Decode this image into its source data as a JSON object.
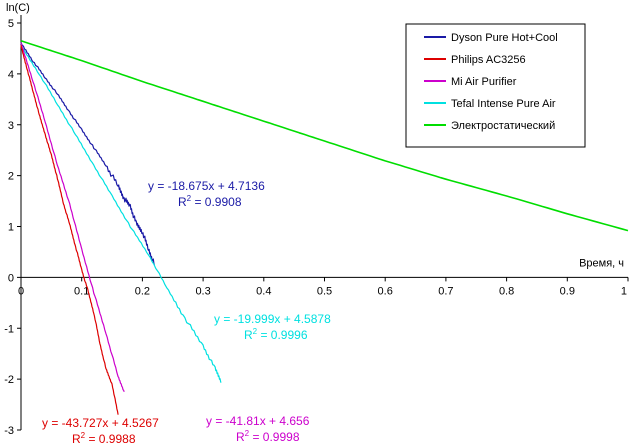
{
  "chart_data": {
    "type": "line",
    "title": "",
    "ylabel": "ln(C)",
    "xlabel": "Время, ч",
    "xlim": [
      0,
      1
    ],
    "ylim": [
      -3,
      5
    ],
    "xticks": [
      "0",
      "0.1",
      "0.2",
      "0.3",
      "0.4",
      "0.5",
      "0.6",
      "0.7",
      "0.8",
      "0.9",
      "1"
    ],
    "yticks": [
      "-3",
      "-2",
      "-1",
      "0",
      "1",
      "2",
      "3",
      "4",
      "5"
    ],
    "legend_position": "top-right",
    "series": [
      {
        "name": "Dyson Pure Hot+Cool",
        "color": "#1a1aa6",
        "x": [
          0,
          0.02,
          0.04,
          0.06,
          0.08,
          0.1,
          0.12,
          0.14,
          0.16,
          0.17,
          0.18,
          0.19,
          0.2,
          0.21,
          0.22
        ],
        "y": [
          4.6,
          4.25,
          3.92,
          3.6,
          3.25,
          2.9,
          2.55,
          2.2,
          1.8,
          1.55,
          1.4,
          1.05,
          0.9,
          0.55,
          0.25
        ]
      },
      {
        "name": "Philips AC3256",
        "color": "#dd0000",
        "x": [
          0,
          0.01,
          0.02,
          0.03,
          0.04,
          0.05,
          0.06,
          0.07,
          0.08,
          0.09,
          0.1,
          0.11,
          0.12,
          0.13,
          0.14,
          0.15,
          0.16
        ],
        "y": [
          4.55,
          4.1,
          3.65,
          3.2,
          2.8,
          2.4,
          1.95,
          1.45,
          1.05,
          0.6,
          0.15,
          -0.25,
          -0.7,
          -1.3,
          -1.8,
          -2.1,
          -2.7
        ]
      },
      {
        "name": "Mi Air Purifier",
        "color": "#cc00cc",
        "x": [
          0,
          0.02,
          0.04,
          0.06,
          0.08,
          0.1,
          0.12,
          0.14,
          0.16,
          0.17
        ],
        "y": [
          4.6,
          3.85,
          3.05,
          2.2,
          1.45,
          0.55,
          -0.3,
          -1.1,
          -1.95,
          -2.25
        ]
      },
      {
        "name": "Tefal Intense Pure Air",
        "color": "#00e0e0",
        "x": [
          0,
          0.03,
          0.06,
          0.09,
          0.12,
          0.15,
          0.18,
          0.21,
          0.24,
          0.27,
          0.3,
          0.32,
          0.33
        ],
        "y": [
          4.55,
          4.0,
          3.4,
          2.8,
          2.2,
          1.6,
          1.0,
          0.45,
          -0.2,
          -0.8,
          -1.35,
          -1.8,
          -2.05
        ]
      },
      {
        "name": "Электростатический",
        "color": "#00dd00",
        "x": [
          0,
          0.1,
          0.2,
          0.3,
          0.4,
          0.5,
          0.6,
          0.7,
          0.8,
          0.9,
          1.0
        ],
        "y": [
          4.65,
          4.26,
          3.85,
          3.46,
          3.07,
          2.68,
          2.29,
          1.93,
          1.6,
          1.25,
          0.92
        ]
      }
    ],
    "annotations": [
      {
        "series": "Dyson Pure Hot+Cool",
        "equation": "y = -18.675x + 4.7136",
        "r2_label": "R",
        "r2_sup": "2",
        "r2_value": " = 0.9908",
        "color": "#1a1aa6"
      },
      {
        "series": "Tefal Intense Pure Air",
        "equation": "y = -19.999x + 4.5878",
        "r2_label": "R",
        "r2_sup": "2",
        "r2_value": " = 0.9996",
        "color": "#00e0e0"
      },
      {
        "series": "Philips AC3256",
        "equation": "y = -43.727x + 4.5267",
        "r2_label": "R",
        "r2_sup": "2",
        "r2_value": " = 0.9988",
        "color": "#dd0000"
      },
      {
        "series": "Mi Air Purifier",
        "equation": "y = -41.81x + 4.656",
        "r2_label": "R",
        "r2_sup": "2",
        "r2_value": " = 0.9998",
        "color": "#cc00cc"
      }
    ]
  }
}
